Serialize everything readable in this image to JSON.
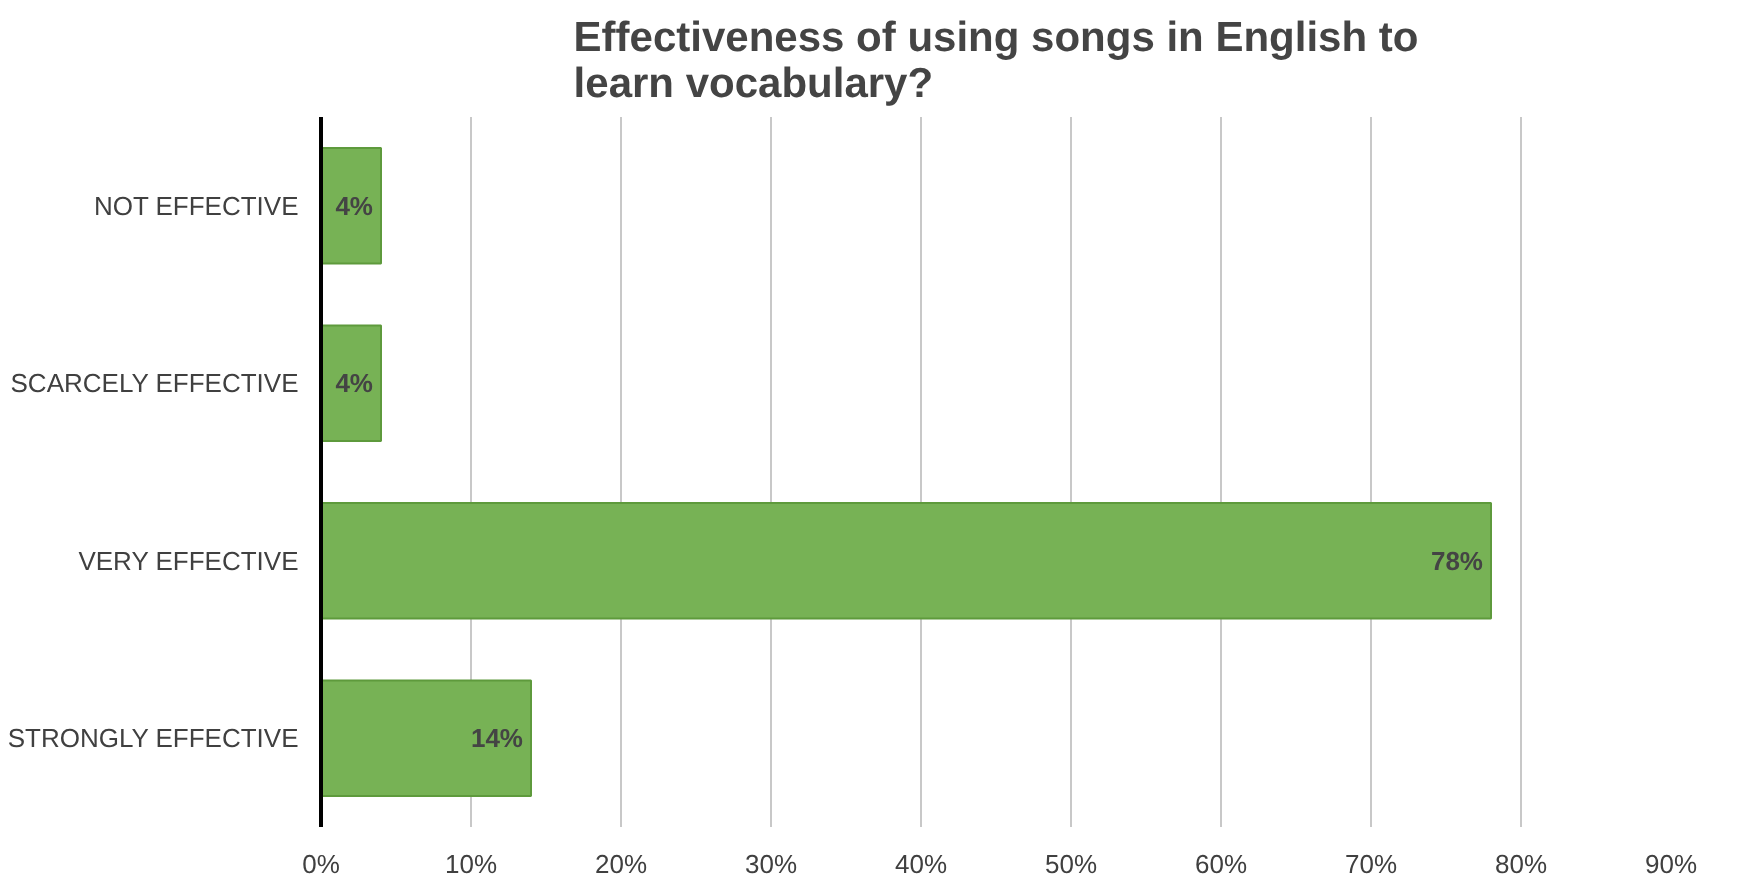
{
  "chart_data": {
    "type": "bar",
    "orientation": "horizontal",
    "title": "Effectiveness of using songs in English to\nlearn vocabulary?",
    "categories": [
      "NOT EFFECTIVE",
      "SCARCELY EFFECTIVE",
      "VERY EFFECTIVE",
      "STRONGLY EFFECTIVE"
    ],
    "values": [
      4,
      4,
      78,
      14
    ],
    "value_labels": [
      "4%",
      "4%",
      "78%",
      "14%"
    ],
    "color": "#77b255",
    "xlim": [
      0,
      90
    ],
    "xticks": [
      {
        "value": 0,
        "label": "0%"
      },
      {
        "value": 10,
        "label": "10%"
      },
      {
        "value": 20,
        "label": "20%"
      },
      {
        "value": 30,
        "label": "30%"
      },
      {
        "value": 40,
        "label": "40%"
      },
      {
        "value": 50,
        "label": "50%"
      },
      {
        "value": 60,
        "label": "60%"
      },
      {
        "value": 70,
        "label": "70%"
      },
      {
        "value": 80,
        "label": "80%"
      },
      {
        "value": 90,
        "label": "90%"
      }
    ],
    "grid": "x"
  }
}
